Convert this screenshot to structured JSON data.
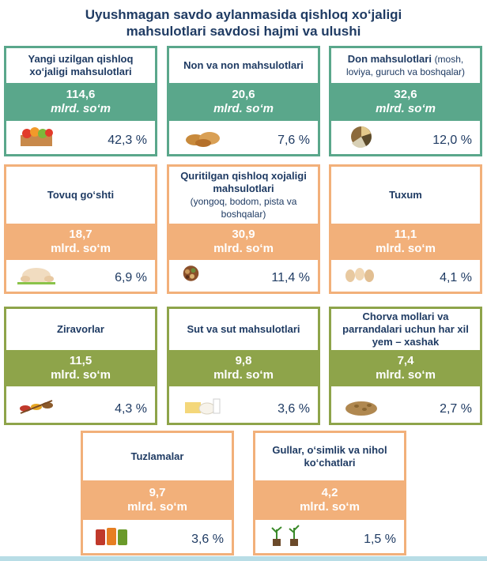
{
  "title": {
    "line1": "Uyushmagan savdo aylanmasida qishloq xo‘jaligi",
    "line2": "mahsulotlari savdosi hajmi va ulushi"
  },
  "cards": [
    {
      "name": "Yangi uzilgan qishloq xo‘jaligi mahsulotlari",
      "sub": "",
      "value": "114,6",
      "unit": "mlrd. so‘m",
      "pct": "42,3 %",
      "icon": "fruit-crate-icon",
      "color": "#5aa78b"
    },
    {
      "name": "Non va non mahsulotlari",
      "sub": "",
      "value": "20,6",
      "unit": "mlrd. so‘m",
      "pct": "7,6 %",
      "icon": "bread-icon",
      "color": "#5aa78b"
    },
    {
      "name": "Don mahsulotlari",
      "sub": "(mosh, loviya, guruch va boshqalar)",
      "value": "32,6",
      "unit": "mlrd. so‘m",
      "pct": "12,0 %",
      "icon": "grains-icon",
      "color": "#5aa78b"
    },
    {
      "name": "Tovuq go‘shti",
      "sub": "",
      "value": "18,7",
      "unit": "mlrd. so‘m",
      "pct": "6,9 %",
      "icon": "chicken-icon",
      "color": "#f2b07a"
    },
    {
      "name": "Quritilgan qishloq xojaligi mahsulotlari",
      "sub": "(yongoq, bodom, pista va boshqalar)",
      "value": "30,9",
      "unit": "mlrd. so‘m",
      "pct": "11,4 %",
      "icon": "nuts-icon",
      "color": "#f2b07a"
    },
    {
      "name": "Tuxum",
      "sub": "",
      "value": "11,1",
      "unit": "mlrd. so‘m",
      "pct": "4,1 %",
      "icon": "eggs-icon",
      "color": "#f2b07a"
    },
    {
      "name": "Ziravorlar",
      "sub": "",
      "value": "11,5",
      "unit": "mlrd. so‘m",
      "pct": "4,3 %",
      "icon": "spices-icon",
      "color": "#8ea44a"
    },
    {
      "name": "Sut va sut mahsulotlari",
      "sub": "",
      "value": "9,8",
      "unit": "mlrd. so‘m",
      "pct": "3,6 %",
      "icon": "dairy-icon",
      "color": "#8ea44a"
    },
    {
      "name": "Chorva mollari va parrandalari uchun har xil yem – xashak",
      "sub": "",
      "value": "7,4",
      "unit": "mlrd. so‘m",
      "pct": "2,7 %",
      "icon": "feed-icon",
      "color": "#8ea44a"
    },
    {
      "name": "Tuzlamalar",
      "sub": "",
      "value": "9,7",
      "unit": "mlrd. so‘m",
      "pct": "3,6 %",
      "icon": "pickles-icon",
      "color": "#f2b07a"
    },
    {
      "name": "Gullar, o‘simlik va nihol ko‘chatlari",
      "sub": "",
      "value": "4,2",
      "unit": "mlrd. so‘m",
      "pct": "1,5 %",
      "icon": "seedlings-icon",
      "color": "#f2b07a"
    }
  ]
}
